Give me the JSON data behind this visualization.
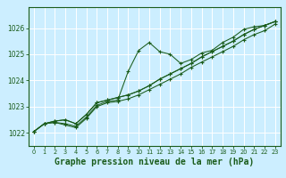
{
  "background_color": "#cceeff",
  "plot_bg_color": "#cceeff",
  "grid_color": "#ffffff",
  "line_color": "#1a5c1a",
  "xlabel": "Graphe pression niveau de la mer (hPa)",
  "xlabel_fontsize": 7.0,
  "xlim": [
    -0.5,
    23.5
  ],
  "ylim": [
    1021.5,
    1026.8
  ],
  "yticks": [
    1022,
    1023,
    1024,
    1025,
    1026
  ],
  "xticks": [
    0,
    1,
    2,
    3,
    4,
    5,
    6,
    7,
    8,
    9,
    10,
    11,
    12,
    13,
    14,
    15,
    16,
    17,
    18,
    19,
    20,
    21,
    22,
    23
  ],
  "series": [
    [
      1022.05,
      1022.35,
      1022.4,
      1022.35,
      1022.25,
      1022.6,
      1023.05,
      1023.2,
      1023.25,
      1024.35,
      1025.15,
      1025.45,
      1025.1,
      1025.0,
      1024.65,
      1024.8,
      1025.05,
      1025.15,
      1025.45,
      1025.65,
      1025.95,
      1026.05,
      1026.1,
      1026.25
    ],
    [
      1022.05,
      1022.35,
      1022.4,
      1022.3,
      1022.2,
      1022.55,
      1023.0,
      1023.15,
      1023.2,
      1023.3,
      1023.45,
      1023.65,
      1023.85,
      1024.05,
      1024.25,
      1024.5,
      1024.7,
      1024.9,
      1025.1,
      1025.3,
      1025.55,
      1025.75,
      1025.9,
      1026.15
    ],
    [
      1022.05,
      1022.35,
      1022.45,
      1022.5,
      1022.35,
      1022.7,
      1023.15,
      1023.25,
      1023.35,
      1023.45,
      1023.6,
      1023.8,
      1024.05,
      1024.25,
      1024.45,
      1024.65,
      1024.9,
      1025.1,
      1025.3,
      1025.5,
      1025.75,
      1025.95,
      1026.1,
      1026.25
    ],
    [
      1022.05,
      1022.35,
      1022.45,
      1022.5,
      1022.35,
      1022.7,
      1023.15,
      1023.25,
      1023.35,
      1023.45,
      1023.6,
      1023.8,
      1024.05,
      1024.25,
      1024.45,
      1024.65,
      1024.9,
      1025.1,
      1025.3,
      1025.5,
      1025.75,
      1025.95,
      1026.1,
      1026.25
    ]
  ]
}
